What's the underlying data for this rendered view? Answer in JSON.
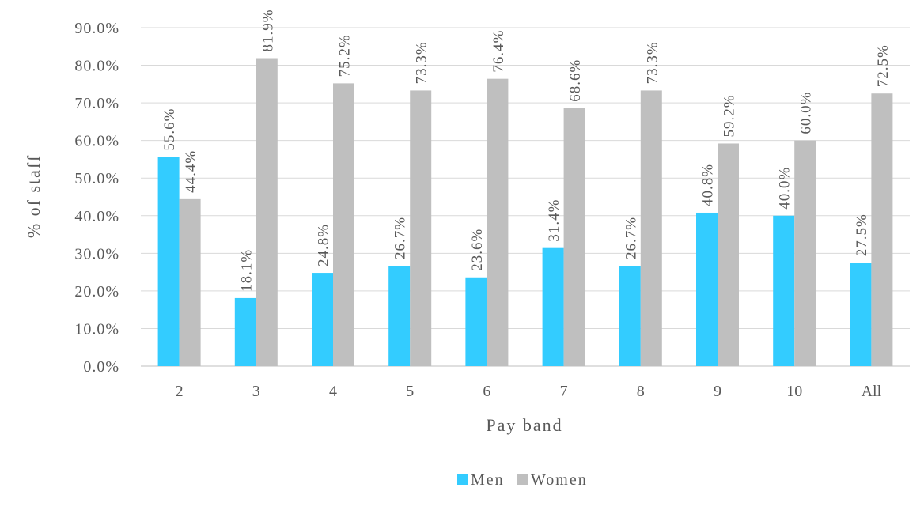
{
  "chart_data": {
    "type": "bar",
    "title": "",
    "xlabel": "Pay band",
    "ylabel": "% of staff",
    "ylim": [
      0,
      90
    ],
    "yticks": [
      "0.0%",
      "10.0%",
      "20.0%",
      "30.0%",
      "40.0%",
      "50.0%",
      "60.0%",
      "70.0%",
      "80.0%",
      "90.0%"
    ],
    "grid": true,
    "legend_position": "bottom",
    "categories": [
      "2",
      "3",
      "4",
      "5",
      "6",
      "7",
      "8",
      "9",
      "10",
      "All"
    ],
    "series": [
      {
        "name": "Men",
        "color": "#33ccff",
        "values": [
          55.6,
          18.1,
          24.8,
          26.7,
          23.6,
          31.4,
          26.7,
          40.8,
          40.0,
          27.5
        ],
        "labels": [
          "55.6%",
          "18.1%",
          "24.8%",
          "26.7%",
          "23.6%",
          "31.4%",
          "26.7%",
          "40.8%",
          "40.0%",
          "27.5%"
        ]
      },
      {
        "name": "Women",
        "color": "#bfbfbf",
        "values": [
          44.4,
          81.9,
          75.2,
          73.3,
          76.4,
          68.6,
          73.3,
          59.2,
          60.0,
          72.5
        ],
        "labels": [
          "44.4%",
          "81.9%",
          "75.2%",
          "73.3%",
          "76.4%",
          "68.6%",
          "73.3%",
          "59.2%",
          "60.0%",
          "72.5%"
        ]
      }
    ]
  }
}
